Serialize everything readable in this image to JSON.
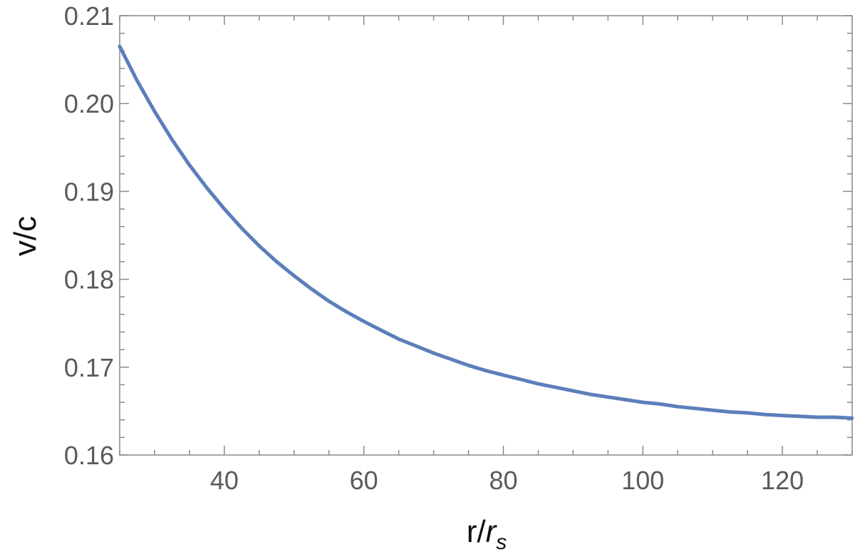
{
  "chart_data": {
    "type": "line",
    "title": "",
    "xlabel": "r/",
    "xlabel_sub": "r",
    "xlabel_sub_index": "s",
    "ylabel": "v/c",
    "xlim": [
      25,
      130
    ],
    "ylim": [
      0.16,
      0.21
    ],
    "x_ticks": [
      40,
      60,
      80,
      100,
      120
    ],
    "x_tick_labels": [
      "40",
      "60",
      "80",
      "100",
      "120"
    ],
    "x_minor_step": 5,
    "y_ticks": [
      0.16,
      0.17,
      0.18,
      0.19,
      0.2,
      0.21
    ],
    "y_tick_labels": [
      "0.16",
      "0.17",
      "0.18",
      "0.19",
      "0.20",
      "0.21"
    ],
    "y_minor_step": 0.002,
    "grid": false,
    "series": [
      {
        "color": "#5b7fba",
        "x": [
          25,
          27.5,
          30,
          32.5,
          35,
          37.5,
          40,
          42.5,
          45,
          47.5,
          50,
          52.5,
          55,
          57.5,
          60,
          62.5,
          65,
          67.5,
          70,
          72.5,
          75,
          77.5,
          80,
          82.5,
          85,
          87.5,
          90,
          92.5,
          95,
          97.5,
          100,
          102.5,
          105,
          107.5,
          110,
          112.5,
          115,
          117.5,
          120,
          122.5,
          125,
          127.5,
          130
        ],
        "y": [
          0.2065,
          0.2026,
          0.1991,
          0.1959,
          0.193,
          0.1904,
          0.188,
          0.1858,
          0.1838,
          0.182,
          0.1804,
          0.1789,
          0.1775,
          0.1763,
          0.1752,
          0.1742,
          0.1732,
          0.1724,
          0.1716,
          0.1709,
          0.1702,
          0.1696,
          0.1691,
          0.1686,
          0.1681,
          0.1677,
          0.1673,
          0.1669,
          0.1666,
          0.1663,
          0.166,
          0.1658,
          0.1655,
          0.1653,
          0.1651,
          0.1649,
          0.1648,
          0.1646,
          0.1645,
          0.1644,
          0.1643,
          0.1643,
          0.1642
        ]
      }
    ]
  }
}
